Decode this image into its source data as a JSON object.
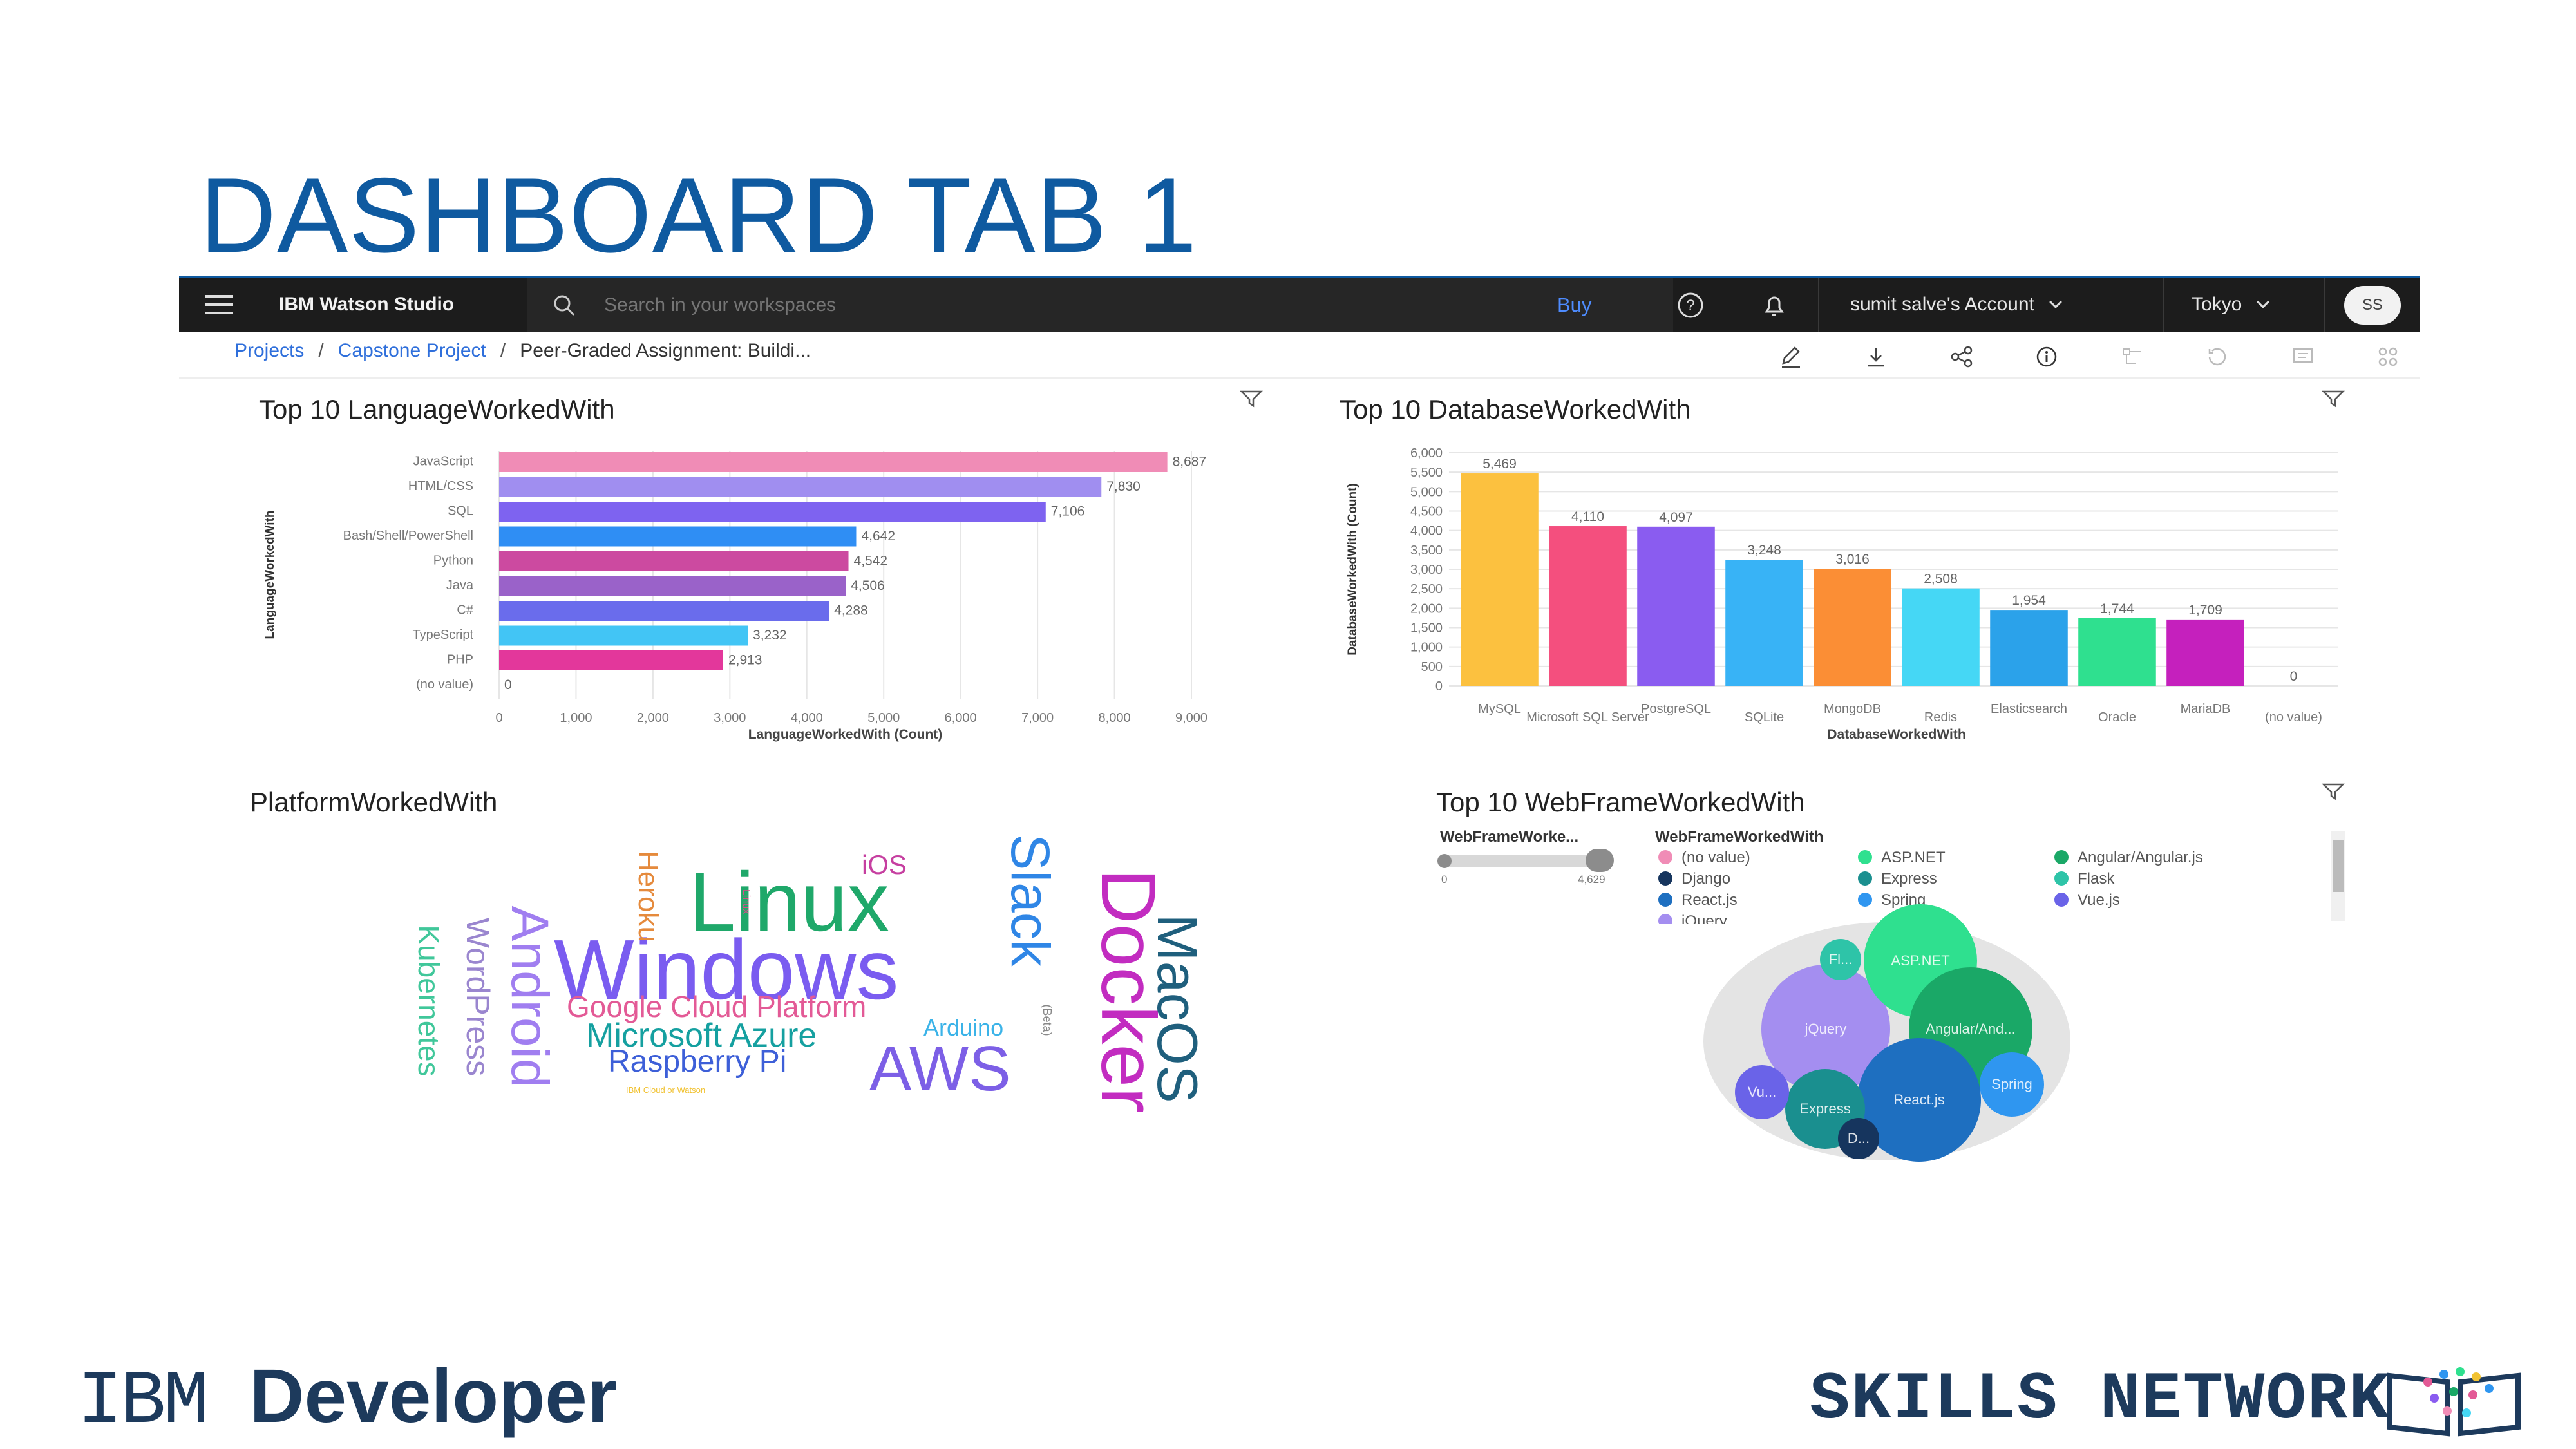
{
  "slide": {
    "title": "DASHBOARD TAB 1"
  },
  "topbar": {
    "brand": "IBM Watson Studio",
    "search_placeholder": "Search in your workspaces",
    "buy_label": "Buy",
    "account_label": "sumit salve's Account",
    "region_label": "Tokyo",
    "avatar_initials": "SS",
    "icons": [
      "menu-icon",
      "search-icon",
      "help-icon",
      "notification-icon",
      "chevron-down-icon"
    ]
  },
  "breadcrumb": {
    "items": [
      "Projects",
      "Capstone Project",
      "Peer-Graded Assignment: Buildi..."
    ],
    "separator": "/"
  },
  "toolbar": {
    "icons": [
      "edit-icon",
      "download-icon",
      "share-icon",
      "info-icon",
      "properties-icon",
      "history-icon",
      "comment-icon",
      "settings-icon"
    ]
  },
  "panels": {
    "language": {
      "title": "Top 10 LanguageWorkedWith"
    },
    "database": {
      "title": "Top 10 DatabaseWorkedWith"
    },
    "platform": {
      "title": "PlatformWorkedWith"
    },
    "webframe": {
      "title": "Top 10 WebFrameWorkedWith"
    }
  },
  "chart_data": [
    {
      "type": "bar",
      "orientation": "horizontal",
      "title": "Top 10 LanguageWorkedWith",
      "xlabel": "LanguageWorkedWith (Count)",
      "ylabel": "LanguageWorkedWith",
      "categories": [
        "JavaScript",
        "HTML/CSS",
        "SQL",
        "Bash/Shell/PowerShell",
        "Python",
        "Java",
        "C#",
        "TypeScript",
        "PHP",
        "(no value)"
      ],
      "values": [
        8687,
        7830,
        7106,
        4642,
        4542,
        4506,
        4288,
        3232,
        2913,
        0
      ],
      "value_labels": [
        "8,687",
        "7,830",
        "7,106",
        "4,642",
        "4,542",
        "4,506",
        "4,288",
        "3,232",
        "2,913",
        "0"
      ],
      "colors": [
        "#f08cb6",
        "#a08ef0",
        "#7e63f0",
        "#2f8ef4",
        "#cc4aa0",
        "#9a62c9",
        "#6a6cec",
        "#42c5f5",
        "#e3379b",
        "#cccccc"
      ],
      "xticks": [
        0,
        1000,
        2000,
        3000,
        4000,
        5000,
        6000,
        7000,
        8000,
        9000
      ],
      "xtick_labels": [
        "0",
        "1,000",
        "2,000",
        "3,000",
        "4,000",
        "5,000",
        "6,000",
        "7,000",
        "8,000",
        "9,000"
      ],
      "xlim": [
        0,
        9000
      ],
      "grid": true
    },
    {
      "type": "bar",
      "orientation": "vertical",
      "title": "Top 10 DatabaseWorkedWith",
      "xlabel": "DatabaseWorkedWith",
      "ylabel": "DatabaseWorkedWith (Count)",
      "categories": [
        "MySQL",
        "Microsoft SQL Server",
        "PostgreSQL",
        "SQLite",
        "MongoDB",
        "Redis",
        "Elasticsearch",
        "Oracle",
        "MariaDB",
        "(no value)"
      ],
      "values": [
        5469,
        4110,
        4097,
        3248,
        3016,
        2508,
        1954,
        1744,
        1709,
        0
      ],
      "value_labels": [
        "5,469",
        "4,110",
        "4,097",
        "3,248",
        "3,016",
        "2,508",
        "1,954",
        "1,744",
        "1,709",
        "0"
      ],
      "colors": [
        "#fcc13f",
        "#f44f7e",
        "#8a5cf0",
        "#38b3f6",
        "#fb8e35",
        "#45d7f5",
        "#2ba2ea",
        "#2fe08f",
        "#c520bd",
        "#cccccc"
      ],
      "yticks": [
        0,
        500,
        1000,
        1500,
        2000,
        2500,
        3000,
        3500,
        4000,
        4500,
        5000,
        5500,
        6000
      ],
      "ytick_labels": [
        "0",
        "500",
        "1,000",
        "1,500",
        "2,000",
        "2,500",
        "3,000",
        "3,500",
        "4,000",
        "4,500",
        "5,000",
        "5,500",
        "6,000"
      ],
      "ylim": [
        0,
        6000
      ],
      "grid": true
    },
    {
      "type": "wordcloud",
      "title": "PlatformWorkedWith",
      "words": [
        {
          "text": "Windows",
          "color": "#7a5cf0"
        },
        {
          "text": "Linux",
          "color": "#1fa86a"
        },
        {
          "text": "Docker",
          "color": "#c22cc0"
        },
        {
          "text": "AWS",
          "color": "#7c5fe6"
        },
        {
          "text": "MacOS",
          "color": "#1f5f7d"
        },
        {
          "text": "Slack",
          "color": "#2f86e6"
        },
        {
          "text": "Android",
          "color": "#a07ef0"
        },
        {
          "text": "Google Cloud Platform",
          "color": "#e35a96"
        },
        {
          "text": "Microsoft Azure",
          "color": "#15a0a0"
        },
        {
          "text": "Raspberry Pi",
          "color": "#3d5fd8"
        },
        {
          "text": "WordPress",
          "color": "#9a86cf"
        },
        {
          "text": "Kubernetes",
          "color": "#40c79a"
        },
        {
          "text": "Heroku",
          "color": "#e58a3c"
        },
        {
          "text": "iOS",
          "color": "#c63fa0"
        },
        {
          "text": "Arduino",
          "color": "#3bb3e8"
        },
        {
          "text": "(Beta)",
          "color": "#888888"
        },
        {
          "text": "IBM Cloud or Watson",
          "color": "#f1c232"
        },
        {
          "text": "Linux",
          "color": "#d94b8a"
        }
      ]
    },
    {
      "type": "bubble",
      "title": "Top 10 WebFrameWorkedWith",
      "legend_title": "WebFrameWorkedWith",
      "size_legend_title": "WebFrameWorke...",
      "size_range_labels": [
        "0",
        "4,629"
      ],
      "series": [
        {
          "name": "(no value)",
          "color": "#f08cb6"
        },
        {
          "name": "ASP.NET",
          "color": "#2fe08f"
        },
        {
          "name": "Angular/Angular.js",
          "color": "#1aa867"
        },
        {
          "name": "Django",
          "color": "#16355e"
        },
        {
          "name": "Express",
          "color": "#1a8f8f"
        },
        {
          "name": "Flask",
          "color": "#2ec4a8"
        },
        {
          "name": "React.js",
          "color": "#1e6fc0"
        },
        {
          "name": "Spring",
          "color": "#2f96f0"
        },
        {
          "name": "Vue.js",
          "color": "#6a63e8"
        },
        {
          "name": "jQuery",
          "color": "#a48ef0"
        }
      ],
      "bubbles": [
        {
          "label": "jQuery",
          "color": "#a48ef0"
        },
        {
          "label": "ASP.NET",
          "color": "#2fe08f"
        },
        {
          "label": "Angular/And...",
          "color": "#1aa867"
        },
        {
          "label": "React.js",
          "color": "#1e6fc0"
        },
        {
          "label": "Express",
          "color": "#1a8f8f"
        },
        {
          "label": "Spring",
          "color": "#2f96f0"
        },
        {
          "label": "Vu...",
          "color": "#6a63e8"
        },
        {
          "label": "Fl...",
          "color": "#2ec4a8"
        },
        {
          "label": "D...",
          "color": "#16355e"
        }
      ]
    }
  ],
  "footer": {
    "left_logo_prefix": "IBM ",
    "left_logo_main": "Developer",
    "right_logo": "SKILLS NETWORK"
  }
}
